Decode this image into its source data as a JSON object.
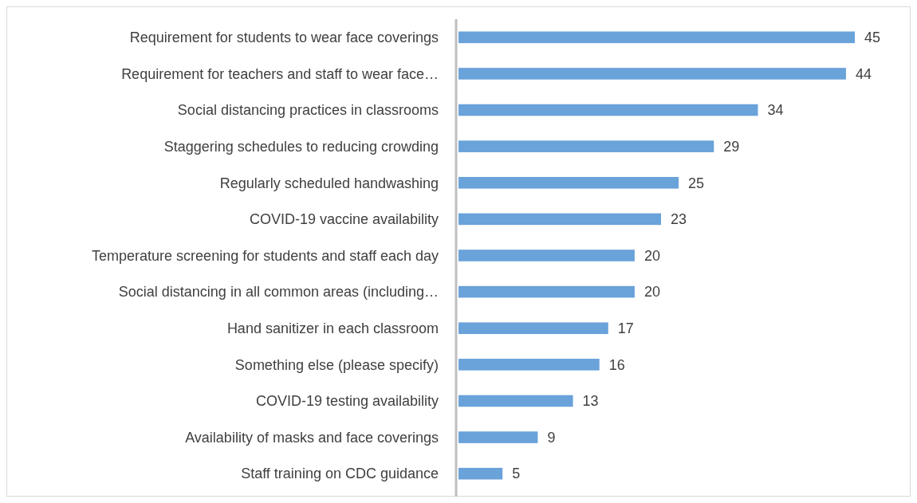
{
  "chart_data": {
    "type": "bar",
    "orientation": "horizontal",
    "categories": [
      "Requirement for students to wear face coverings",
      "Requirement for teachers and staff to wear face…",
      "Social distancing practices in classrooms",
      "Staggering schedules to reducing crowding",
      "Regularly scheduled handwashing",
      "COVID-19 vaccine availability",
      "Temperature screening for students and staff each day",
      "Social distancing in all common areas (including…",
      "Hand sanitizer in each classroom",
      "Something else (please specify)",
      "COVID-19 testing availability",
      "Availability of masks and face coverings",
      "Staff training on CDC guidance"
    ],
    "values": [
      45,
      44,
      34,
      29,
      25,
      23,
      20,
      20,
      17,
      16,
      13,
      9,
      5
    ],
    "color": "#6aa2da",
    "data_labels": true
  }
}
